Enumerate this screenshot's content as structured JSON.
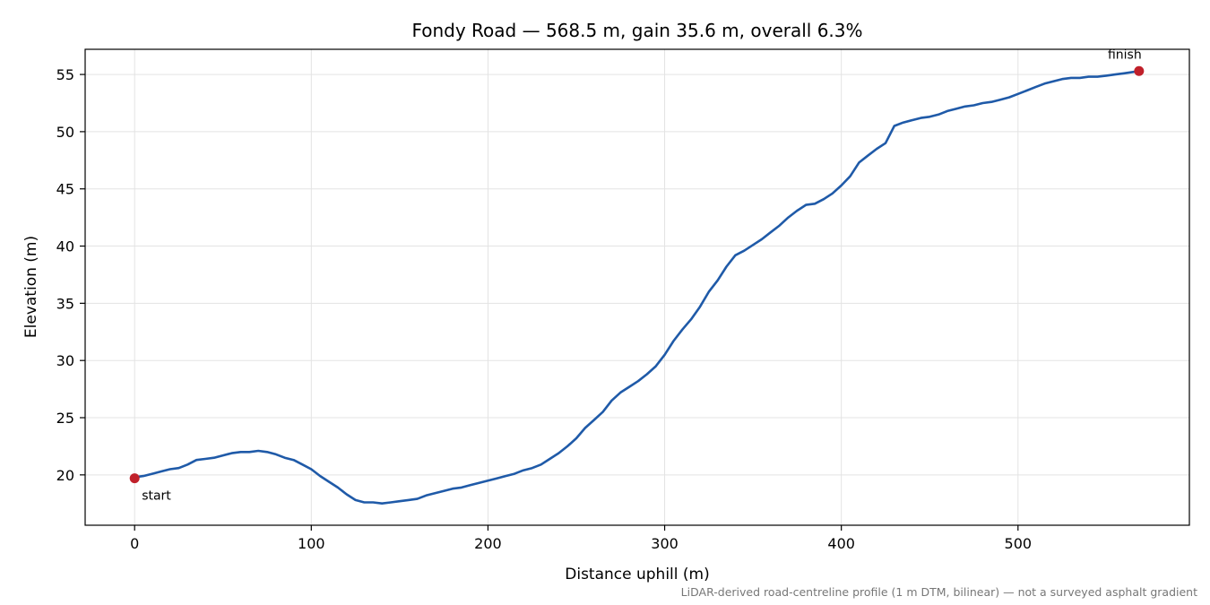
{
  "chart_data": {
    "type": "line",
    "title": "Fondy Road — 568.5 m, gain 35.6 m, overall 6.3%",
    "xlabel": "Distance uphill (m)",
    "ylabel": "Elevation (m)",
    "xlim": [
      -28,
      597
    ],
    "ylim": [
      15.6,
      57.2
    ],
    "xticks": [
      0,
      100,
      200,
      300,
      400,
      500
    ],
    "yticks": [
      20,
      25,
      30,
      35,
      40,
      45,
      50,
      55
    ],
    "grid": true,
    "line_color": "#1f5aa8",
    "marker_color": "#c0202a",
    "series": [
      {
        "x": [
          0,
          5,
          10,
          15,
          20,
          25,
          30,
          35,
          40,
          45,
          50,
          55,
          60,
          65,
          70,
          75,
          80,
          85,
          90,
          95,
          100,
          105,
          110,
          115,
          120,
          125,
          130,
          135,
          140,
          145,
          150,
          155,
          160,
          165,
          170,
          175,
          180,
          185,
          190,
          195,
          200,
          205,
          210,
          215,
          220,
          225,
          230,
          235,
          240,
          245,
          250,
          255,
          260,
          265,
          270,
          275,
          280,
          285,
          290,
          295,
          300,
          305,
          310,
          315,
          320,
          325,
          330,
          335,
          340,
          345,
          350,
          355,
          360,
          365,
          370,
          375,
          380,
          385,
          390,
          395,
          400,
          405,
          410,
          415,
          420,
          425,
          430,
          435,
          440,
          445,
          450,
          455,
          460,
          465,
          470,
          475,
          480,
          485,
          490,
          495,
          500,
          505,
          510,
          515,
          520,
          525,
          530,
          535,
          540,
          545,
          550,
          555,
          560,
          568.5
        ],
        "y": [
          19.8,
          19.9,
          20.1,
          20.3,
          20.5,
          20.6,
          20.9,
          21.3,
          21.4,
          21.5,
          21.7,
          21.9,
          22.0,
          22.0,
          22.1,
          22.0,
          21.8,
          21.5,
          21.3,
          20.9,
          20.5,
          19.9,
          19.4,
          18.9,
          18.3,
          17.8,
          17.6,
          17.6,
          17.5,
          17.6,
          17.7,
          17.8,
          17.9,
          18.2,
          18.4,
          18.6,
          18.8,
          18.9,
          19.1,
          19.3,
          19.5,
          19.7,
          19.9,
          20.1,
          20.4,
          20.6,
          20.9,
          21.4,
          21.9,
          22.5,
          23.2,
          24.1,
          24.8,
          25.5,
          26.5,
          27.2,
          27.7,
          28.2,
          28.8,
          29.5,
          30.5,
          31.7,
          32.7,
          33.6,
          34.7,
          36.0,
          37.0,
          38.2,
          39.2,
          39.6,
          40.1,
          40.6,
          41.2,
          41.8,
          42.5,
          43.1,
          43.6,
          43.7,
          44.1,
          44.6,
          45.3,
          46.1,
          47.3,
          47.9,
          48.5,
          49.0,
          50.5,
          50.8,
          51.0,
          51.2,
          51.3,
          51.5,
          51.8,
          52.0,
          52.2,
          52.3,
          52.5,
          52.6,
          52.8,
          53.0,
          53.3,
          53.6,
          53.9,
          54.2,
          54.4,
          54.6,
          54.7,
          54.7,
          54.8,
          54.8,
          54.9,
          55.0,
          55.1,
          55.3
        ]
      }
    ],
    "annotations": [
      {
        "label": "start",
        "x": 0,
        "y": 19.7
      },
      {
        "label": "finish",
        "x": 568.5,
        "y": 55.3
      }
    ],
    "footnote": "LiDAR-derived road-centreline profile (1 m DTM, bilinear) — not a surveyed asphalt gradient"
  }
}
